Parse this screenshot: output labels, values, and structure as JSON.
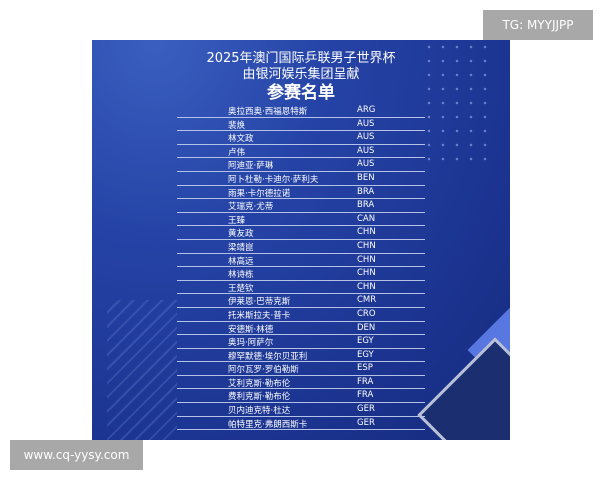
{
  "title_line1": "2025年澳门国际乒联男子世界杯",
  "title_line2": "由银河娱乐集团呈献",
  "title_main": "参赛名单",
  "watermark_top": "TG: MYYJJPP",
  "watermark_bottom": "www.cq-yysy.com",
  "players": [
    {
      "name": "奥拉西奥·西福恩特斯",
      "code": "ARG"
    },
    {
      "name": "裴焕",
      "code": "AUS"
    },
    {
      "name": "林文政",
      "code": "AUS"
    },
    {
      "name": "卢伟",
      "code": "AUS"
    },
    {
      "name": "阿迪亚·萨琳",
      "code": "AUS"
    },
    {
      "name": "阿卜杜勒·卡迪尔·萨利夫",
      "code": "BEN"
    },
    {
      "name": "雨果·卡尔德拉诺",
      "code": "BRA"
    },
    {
      "name": "艾瑞克·尤蒂",
      "code": "BRA"
    },
    {
      "name": "王臻",
      "code": "CAN"
    },
    {
      "name": "黄友政",
      "code": "CHN"
    },
    {
      "name": "梁靖崑",
      "code": "CHN"
    },
    {
      "name": "林高远",
      "code": "CHN"
    },
    {
      "name": "林诗栋",
      "code": "CHN"
    },
    {
      "name": "王楚钦",
      "code": "CHN"
    },
    {
      "name": "伊莱恩·巴蒂克斯",
      "code": "CMR"
    },
    {
      "name": "托米斯拉夫·普卡",
      "code": "CRO"
    },
    {
      "name": "安德斯·林德",
      "code": "DEN"
    },
    {
      "name": "奥玛·阿萨尔",
      "code": "EGY"
    },
    {
      "name": "穆罕默德·埃尔贝亚利",
      "code": "EGY"
    },
    {
      "name": "阿尔瓦罗·罗伯勒斯",
      "code": "ESP"
    },
    {
      "name": "艾利克斯·勒布伦",
      "code": "FRA"
    },
    {
      "name": "费利克斯·勒布伦",
      "code": "FRA"
    },
    {
      "name": "贝内迪克特·杜达",
      "code": "GER"
    },
    {
      "name": "帕特里克·弗朗西斯卡",
      "code": "GER"
    }
  ]
}
